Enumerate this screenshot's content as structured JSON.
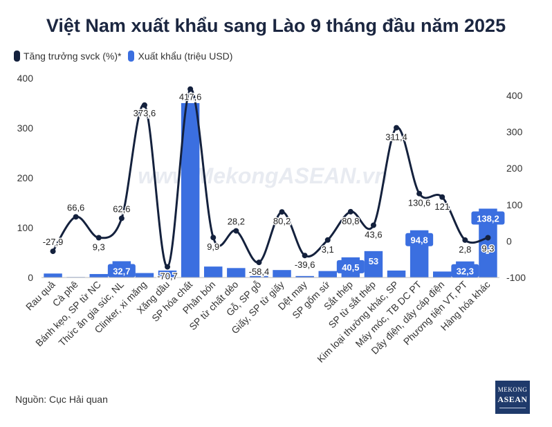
{
  "chart_data": {
    "type": "bar+line",
    "title": "Việt Nam xuất khẩu sang Lào 9 tháng đầu năm 2025",
    "categories": [
      "Rau quả",
      "Cà phê",
      "Bánh kẹo, SP từ NC",
      "Thức ăn gia súc, NL",
      "Clinker, xi măng",
      "Xăng dầu",
      "SP hóa chất",
      "Phân bón",
      "SP từ chất dẻo",
      "Gỗ, SP gỗ",
      "Giấy, SP từ giấy",
      "Dệt may",
      "SP gốm sứ",
      "Sắt thép",
      "SP từ sắt thép",
      "Kim loại thường khác, SP",
      "Máy móc, TB DC PT",
      "Dây điện, dây cáp điện",
      "Phương tiện VT, PT",
      "Hàng hóa khác"
    ],
    "series": [
      {
        "name": "Xuất khẩu (triệu USD)",
        "type": "bar",
        "axis": "left",
        "color": "#3b6fe0",
        "values": [
          8,
          1,
          7,
          32.7,
          9,
          14,
          350,
          22,
          19,
          3,
          15,
          3,
          13,
          40.5,
          53,
          14,
          94.8,
          12,
          32.3,
          138.2
        ],
        "labels": [
          "",
          "",
          "",
          "32,7",
          "",
          "",
          "",
          "",
          "",
          "",
          "",
          "",
          "",
          "40,5",
          "53",
          "",
          "94,8",
          "",
          "32,3",
          "138,2"
        ]
      },
      {
        "name": "Tăng trưởng svck (%)*",
        "type": "line",
        "axis": "right",
        "color": "#14213d",
        "values": [
          -27.9,
          66.6,
          9.3,
          62.6,
          373.6,
          -70.7,
          417.6,
          9.9,
          28.2,
          -58.4,
          80.2,
          -39.6,
          3.1,
          80.8,
          43.6,
          311.4,
          130.6,
          121,
          2.8,
          9.3
        ],
        "labels": [
          "-27,9",
          "66,6",
          "9,3",
          "62,6",
          "373,6",
          "-70,7",
          "417,6",
          "9,9",
          "28,2",
          "-58,4",
          "80,2",
          "-39,6",
          "3,1",
          "80,8",
          "43,6",
          "311,4",
          "130,6",
          "121",
          "2,8",
          "9,3"
        ]
      }
    ],
    "y_left": {
      "ylim": [
        0,
        400
      ],
      "ticks": [
        "0",
        "100",
        "200",
        "300",
        "400"
      ]
    },
    "y_right": {
      "ylim": [
        -100,
        450
      ],
      "ticks": [
        "-100",
        "0",
        "100",
        "200",
        "300",
        "400"
      ]
    },
    "grid": false,
    "legend": "top-left"
  },
  "legend": {
    "growth": "Tăng trưởng svck (%)*",
    "exports": "Xuất khẩu (triệu USD)"
  },
  "watermark": "www.MekongASEAN.vn",
  "source": "Nguồn: Cục Hải quan",
  "logo": {
    "line1": "MEKONG",
    "line2": "ASEAN"
  }
}
